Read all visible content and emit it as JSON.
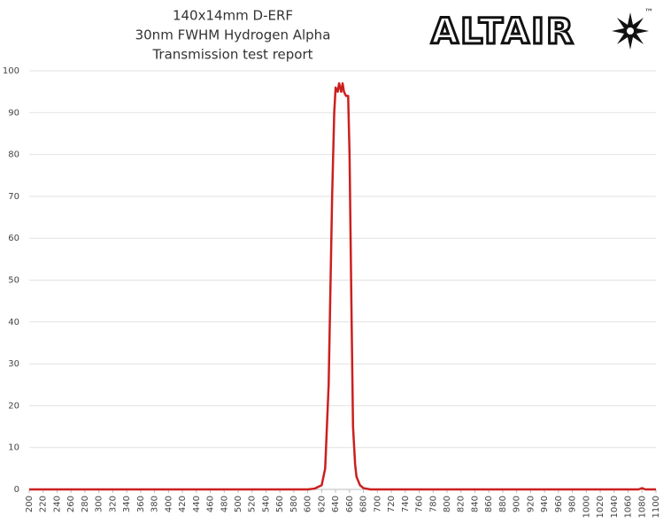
{
  "chart_data": {
    "type": "line",
    "title": [
      "140x14mm D-ERF",
      "30nm FWHM Hydrogen Alpha",
      "Transmission test report"
    ],
    "logo": "ALTAIR",
    "trademark": "™",
    "series": [
      {
        "name": "Transmission",
        "color": "#cc1f1f",
        "x": [
          200,
          600,
          610,
          620,
          625,
          630,
          635,
          638,
          640,
          643,
          645,
          648,
          650,
          652,
          655,
          658,
          660,
          663,
          665,
          668,
          670,
          675,
          680,
          690,
          1075,
          1080,
          1085,
          1100
        ],
        "values": [
          0,
          0,
          0.2,
          1,
          5,
          25,
          70,
          90,
          96,
          95,
          97,
          95,
          97,
          95,
          94,
          94,
          80,
          40,
          15,
          6,
          3,
          1,
          0.3,
          0,
          0,
          0.3,
          0,
          0
        ]
      }
    ],
    "xlim": [
      200,
      1100
    ],
    "xticks": [
      200,
      220,
      240,
      260,
      280,
      300,
      320,
      340,
      360,
      380,
      400,
      420,
      440,
      460,
      480,
      500,
      520,
      540,
      560,
      580,
      600,
      620,
      640,
      660,
      680,
      700,
      720,
      740,
      760,
      780,
      800,
      820,
      840,
      860,
      880,
      900,
      920,
      940,
      960,
      980,
      1000,
      1020,
      1040,
      1060,
      1080,
      1100
    ],
    "ylim": [
      0,
      100
    ],
    "yticks": [
      0,
      10,
      20,
      30,
      40,
      50,
      60,
      70,
      80,
      90,
      100
    ],
    "grid": true
  }
}
